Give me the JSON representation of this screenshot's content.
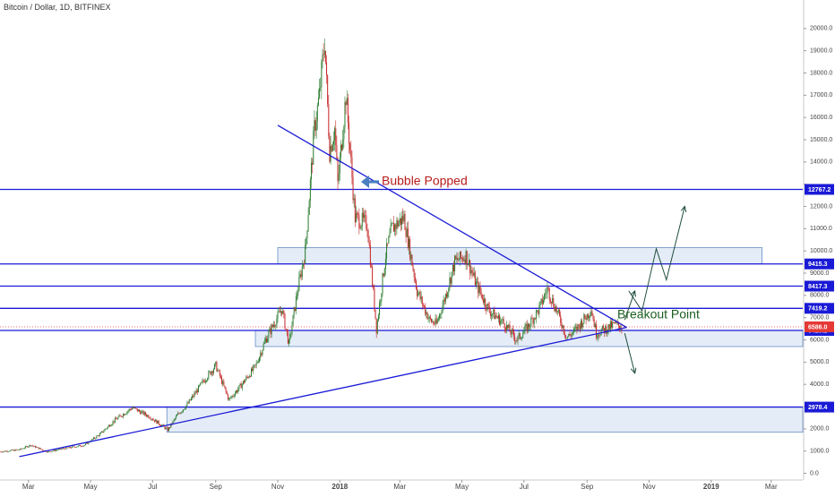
{
  "chart_data": {
    "type": "candlestick",
    "title": "Bitcoin / Dollar, 1D, BITFINEX",
    "x_ticks": [
      "Mar",
      "May",
      "Jul",
      "Sep",
      "Nov",
      "2018",
      "Mar",
      "May",
      "Jul",
      "Sep",
      "Nov",
      "2019",
      "Mar"
    ],
    "y_ticks": [
      "0.0",
      "1000.0",
      "2000.0",
      "3000.0",
      "4000.0",
      "5000.0",
      "6000.0",
      "7000.0",
      "8000.0",
      "9000.0",
      "10000.0",
      "11000.0",
      "12000.0",
      "13000.0",
      "14000.0",
      "15000.0",
      "16000.0",
      "17000.0",
      "18000.0",
      "19000.0",
      "20000.0"
    ],
    "ylim": [
      -300,
      20800
    ],
    "xlim": [
      "2017-02-01",
      "2019-04-01"
    ],
    "price_path": [
      [
        "2017-02-01",
        970
      ],
      [
        "2017-02-20",
        1060
      ],
      [
        "2017-03-03",
        1270
      ],
      [
        "2017-03-20",
        960
      ],
      [
        "2017-04-01",
        1080
      ],
      [
        "2017-04-25",
        1270
      ],
      [
        "2017-05-10",
        1750
      ],
      [
        "2017-05-25",
        2400
      ],
      [
        "2017-06-11",
        2950
      ],
      [
        "2017-06-28",
        2550
      ],
      [
        "2017-07-16",
        1950
      ],
      [
        "2017-07-25",
        2600
      ],
      [
        "2017-08-05",
        3150
      ],
      [
        "2017-08-20",
        4150
      ],
      [
        "2017-09-01",
        4850
      ],
      [
        "2017-09-14",
        3300
      ],
      [
        "2017-09-25",
        3900
      ],
      [
        "2017-10-10",
        4800
      ],
      [
        "2017-10-20",
        6000
      ],
      [
        "2017-11-05",
        7400
      ],
      [
        "2017-11-12",
        5800
      ],
      [
        "2017-11-20",
        8100
      ],
      [
        "2017-11-28",
        10000
      ],
      [
        "2017-12-07",
        15500
      ],
      [
        "2017-12-12",
        17000
      ],
      [
        "2017-12-17",
        19500
      ],
      [
        "2017-12-22",
        14500
      ],
      [
        "2017-12-27",
        15500
      ],
      [
        "2017-12-30",
        13000
      ],
      [
        "2018-01-07",
        17000
      ],
      [
        "2018-01-16",
        11500
      ],
      [
        "2018-01-28",
        11200
      ],
      [
        "2018-02-06",
        6500
      ],
      [
        "2018-02-15",
        9800
      ],
      [
        "2018-02-21",
        11000
      ],
      [
        "2018-03-05",
        11500
      ],
      [
        "2018-03-18",
        8200
      ],
      [
        "2018-03-30",
        6900
      ],
      [
        "2018-04-06",
        6700
      ],
      [
        "2018-04-15",
        8000
      ],
      [
        "2018-04-24",
        9500
      ],
      [
        "2018-05-05",
        9800
      ],
      [
        "2018-05-15",
        8500
      ],
      [
        "2018-05-28",
        7300
      ],
      [
        "2018-06-10",
        6800
      ],
      [
        "2018-06-24",
        6000
      ],
      [
        "2018-07-05",
        6600
      ],
      [
        "2018-07-16",
        7400
      ],
      [
        "2018-07-24",
        8300
      ],
      [
        "2018-08-05",
        7000
      ],
      [
        "2018-08-12",
        6100
      ],
      [
        "2018-08-20",
        6400
      ],
      [
        "2018-09-01",
        7100
      ],
      [
        "2018-09-05",
        7400
      ],
      [
        "2018-09-10",
        6300
      ],
      [
        "2018-09-20",
        6500
      ],
      [
        "2018-09-28",
        6700
      ],
      [
        "2018-10-05",
        6586
      ]
    ],
    "horizontal_lines": [
      {
        "value": 12767.2,
        "label": "12767.2"
      },
      {
        "value": 9415.3,
        "label": "9415.3"
      },
      {
        "value": 8417.3,
        "label": "8417.3"
      },
      {
        "value": 7419.2,
        "label": "7419.2"
      },
      {
        "value": 6425.2,
        "label": "6425.2"
      },
      {
        "value": 2978.4,
        "label": "2978.4"
      }
    ],
    "last_price": {
      "value": 6586.0,
      "label": "6586.0",
      "color": "#e53935"
    },
    "zones": [
      {
        "x0": "2017-11-01",
        "x1": "2019-02-20",
        "y0": 9420,
        "y1": 10150
      },
      {
        "x0": "2017-10-10",
        "x1": "2019-04-01",
        "y0": 5700,
        "y1": 6430
      },
      {
        "x0": "2017-07-15",
        "x1": "2019-04-01",
        "y0": 1850,
        "y1": 2978
      }
    ],
    "trendlines": [
      {
        "x0": "2017-11-01",
        "x1": "2018-10-10",
        "y0": 15650,
        "y1": 6560
      },
      {
        "x0": "2017-02-20",
        "x1": "2018-10-10",
        "y0": 750,
        "y1": 6560
      }
    ],
    "arrows": [
      {
        "points": [
          [
            "2018-10-08",
            6900
          ],
          [
            "2018-10-18",
            8200
          ]
        ]
      },
      {
        "points": [
          [
            "2018-10-12",
            8200
          ],
          [
            "2018-10-25",
            7300
          ],
          [
            "2018-11-08",
            10100
          ],
          [
            "2018-11-18",
            8700
          ],
          [
            "2018-12-06",
            12000
          ]
        ]
      },
      {
        "points": [
          [
            "2018-10-08",
            6300
          ],
          [
            "2018-10-18",
            4500
          ]
        ]
      }
    ],
    "annotations": [
      {
        "text": "Bubble Popped",
        "color": "#b71c1c"
      },
      {
        "text": "Breakout Point",
        "color": "#1b5e20"
      }
    ],
    "colors": {
      "up": "#2e7d32",
      "down": "#c62828",
      "line": "#1a1ad6",
      "zone_fill": "#dbe6f4",
      "zone_stroke": "#6a8fc7",
      "callout_arrow": "#4a7fc1"
    }
  }
}
